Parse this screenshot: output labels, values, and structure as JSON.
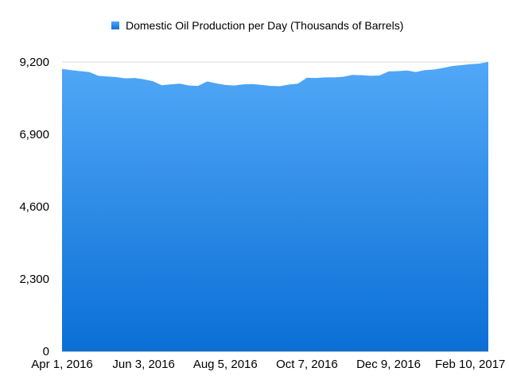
{
  "chart_data": {
    "type": "area",
    "title": "",
    "xlabel": "",
    "ylabel": "",
    "legend": {
      "position": "top",
      "entries": [
        "Domestic Oil Production per Day (Thousands of Barrels)"
      ]
    },
    "series": [
      {
        "name": "Domestic Oil Production per Day (Thousands of Barrels)",
        "color": "#4f9ff0",
        "values": [
          8980,
          8940,
          8910,
          8880,
          8760,
          8740,
          8720,
          8680,
          8690,
          8650,
          8590,
          8460,
          8490,
          8510,
          8450,
          8440,
          8580,
          8520,
          8470,
          8450,
          8490,
          8500,
          8470,
          8440,
          8430,
          8480,
          8510,
          8700,
          8690,
          8710,
          8710,
          8730,
          8790,
          8780,
          8760,
          8770,
          8900,
          8910,
          8930,
          8880,
          8940,
          8960,
          9010,
          9070,
          9100,
          9130,
          9150,
          9200
        ]
      }
    ],
    "x_tick_labels": [
      "Apr 1, 2016",
      "Jun 3, 2016",
      "Aug 5, 2016",
      "Oct 7, 2016",
      "Dec 9, 2016",
      "Feb 10, 2017"
    ],
    "x_tick_index": [
      0,
      9,
      18,
      27,
      36,
      45
    ],
    "y_ticks": [
      0,
      2300,
      4600,
      6900,
      9200
    ],
    "y_tick_labels": [
      "0",
      "2,300",
      "4,600",
      "6,900",
      "9,200"
    ],
    "ylim": [
      0,
      9200
    ],
    "grid": {
      "horizontal": true,
      "vertical": false
    },
    "gradient": {
      "top": "#52a8f7",
      "bottom": "#0a6fd6"
    }
  }
}
